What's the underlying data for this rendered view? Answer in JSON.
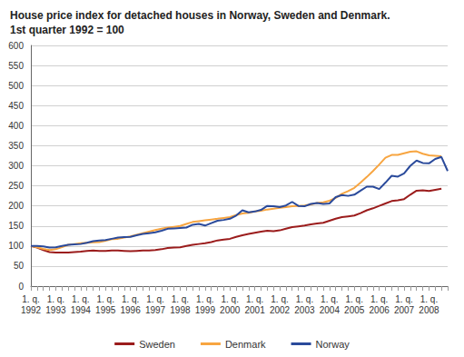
{
  "chart_data": {
    "type": "line",
    "title": "House price index for detached houses in Norway, Sweden and Denmark.\n1st quarter 1992 = 100",
    "categories": [
      "1. q.\n1992",
      null,
      null,
      null,
      "1. q.\n1993",
      null,
      null,
      null,
      "1. q.\n1994",
      null,
      null,
      null,
      "1. q.\n1995",
      null,
      null,
      null,
      "1. q.\n1996",
      null,
      null,
      null,
      "1. q.\n1997",
      null,
      null,
      null,
      "1. q.\n1998",
      null,
      null,
      null,
      "1. q.\n1999",
      null,
      null,
      null,
      "1. q.\n2000",
      null,
      null,
      null,
      "1. q.\n2001",
      null,
      null,
      null,
      "1. q.\n2002",
      null,
      null,
      null,
      "1. q.\n2003",
      null,
      null,
      null,
      "1. q.\n2004",
      null,
      null,
      null,
      "1. q.\n2005",
      null,
      null,
      null,
      "1. q.\n2006",
      null,
      null,
      null,
      "1. q.\n2007",
      null,
      null,
      null,
      "1. q.\n2008",
      null,
      null,
      null
    ],
    "series": [
      {
        "name": "Sweden",
        "color": "#9b1c1c",
        "values": [
          100,
          96,
          90,
          85,
          84,
          84,
          84,
          85,
          86,
          88,
          89,
          88,
          88,
          89,
          89,
          88,
          87,
          88,
          89,
          89,
          90,
          92,
          95,
          96,
          97,
          100,
          103,
          105,
          107,
          110,
          114,
          116,
          118,
          123,
          127,
          130,
          133,
          136,
          138,
          137,
          139,
          143,
          147,
          149,
          151,
          154,
          156,
          158,
          163,
          168,
          172,
          174,
          176,
          182,
          189,
          194,
          200,
          206,
          212,
          214,
          217,
          228,
          238,
          239,
          237,
          240,
          243,
          null
        ]
      },
      {
        "name": "Denmark",
        "color": "#f7a541",
        "values": [
          100,
          97,
          93,
          90,
          92,
          97,
          103,
          105,
          107,
          108,
          109,
          110,
          113,
          117,
          118,
          121,
          124,
          128,
          132,
          136,
          140,
          143,
          146,
          148,
          150,
          155,
          160,
          162,
          164,
          166,
          168,
          170,
          172,
          177,
          181,
          183,
          186,
          188,
          191,
          193,
          195,
          197,
          199,
          200,
          201,
          204,
          207,
          209,
          213,
          220,
          230,
          237,
          245,
          258,
          272,
          287,
          303,
          320,
          327,
          327,
          331,
          335,
          336,
          330,
          326,
          325,
          324,
          null
        ]
      },
      {
        "name": "Norway",
        "color": "#2a4a9b",
        "values": [
          100,
          100,
          99,
          96,
          97,
          100,
          103,
          104,
          105,
          108,
          112,
          114,
          115,
          118,
          121,
          122,
          123,
          127,
          130,
          132,
          134,
          138,
          143,
          144,
          145,
          146,
          153,
          155,
          151,
          157,
          163,
          165,
          168,
          176,
          189,
          184,
          186,
          190,
          200,
          199,
          197,
          201,
          210,
          200,
          199,
          205,
          207,
          205,
          206,
          222,
          227,
          225,
          228,
          238,
          248,
          248,
          242,
          258,
          275,
          273,
          281,
          300,
          313,
          307,
          306,
          317,
          322,
          287
        ]
      }
    ],
    "ylim": [
      0,
      600
    ],
    "yticks": [
      0,
      50,
      100,
      150,
      200,
      250,
      300,
      350,
      400,
      450,
      500,
      550,
      600
    ],
    "grid": true,
    "legend": "bottom"
  }
}
